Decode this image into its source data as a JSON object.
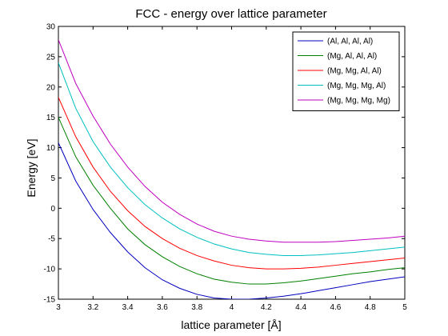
{
  "chart_data": {
    "type": "line",
    "title": "FCC - energy over lattice parameter",
    "xlabel": "lattice parameter [Å]",
    "ylabel": "Energy [eV]",
    "xlim": [
      3,
      5
    ],
    "ylim": [
      -15,
      30
    ],
    "xticks": [
      3,
      3.2,
      3.4,
      3.6,
      3.8,
      4,
      4.2,
      4.4,
      4.6,
      4.8,
      5
    ],
    "xtick_labels": [
      "3",
      "3.2",
      "3.4",
      "3.6",
      "3.8",
      "4",
      "4.2",
      "4.4",
      "4.6",
      "4.8",
      "5"
    ],
    "yticks": [
      -15,
      -10,
      -5,
      0,
      5,
      10,
      15,
      20,
      25,
      30
    ],
    "yticks_labels": [
      "-15",
      "-10",
      "-5",
      "0",
      "5",
      "10",
      "15",
      "20",
      "25",
      "30"
    ],
    "grid": false,
    "legend_position": "top-right",
    "x": [
      3.0,
      3.1,
      3.2,
      3.3,
      3.4,
      3.5,
      3.6,
      3.7,
      3.8,
      3.9,
      4.0,
      4.1,
      4.2,
      4.3,
      4.4,
      4.5,
      4.6,
      4.7,
      4.8,
      4.9,
      5.0
    ],
    "series": [
      {
        "name": "(Al, Al, Al, Al)",
        "color": "#0000bf",
        "values": [
          10.8,
          4.5,
          -0.2,
          -4.0,
          -7.2,
          -9.8,
          -11.8,
          -13.2,
          -14.2,
          -14.8,
          -15.0,
          -15.0,
          -14.8,
          -14.5,
          -14.1,
          -13.6,
          -13.1,
          -12.6,
          -12.1,
          -11.7,
          -11.3
        ]
      },
      {
        "name": "(Mg, Al, Al, Al)",
        "color": "#007f00",
        "values": [
          15.0,
          8.5,
          3.8,
          0.0,
          -3.4,
          -6.0,
          -8.0,
          -9.6,
          -10.8,
          -11.7,
          -12.2,
          -12.5,
          -12.5,
          -12.3,
          -12.0,
          -11.6,
          -11.2,
          -10.8,
          -10.5,
          -10.1,
          -9.8
        ]
      },
      {
        "name": "(Mg, Mg, Al, Al)",
        "color": "#ff0000",
        "values": [
          18.3,
          11.8,
          6.8,
          2.8,
          -0.4,
          -3.0,
          -5.0,
          -6.6,
          -7.8,
          -8.7,
          -9.4,
          -9.8,
          -10.0,
          -10.0,
          -9.9,
          -9.7,
          -9.4,
          -9.1,
          -8.8,
          -8.5,
          -8.2
        ]
      },
      {
        "name": "(Mg, Mg, Mg, Al)",
        "color": "#00bfbf",
        "values": [
          24.0,
          16.5,
          11.0,
          6.8,
          3.4,
          0.6,
          -1.6,
          -3.4,
          -4.8,
          -5.9,
          -6.7,
          -7.3,
          -7.6,
          -7.8,
          -7.8,
          -7.7,
          -7.5,
          -7.3,
          -7.0,
          -6.7,
          -6.4
        ]
      },
      {
        "name": "(Mg, Mg, Mg, Mg)",
        "color": "#bf00bf",
        "values": [
          27.8,
          20.6,
          15.2,
          10.6,
          6.8,
          3.6,
          1.0,
          -1.0,
          -2.6,
          -3.8,
          -4.6,
          -5.1,
          -5.4,
          -5.6,
          -5.6,
          -5.6,
          -5.5,
          -5.3,
          -5.1,
          -4.9,
          -4.6
        ]
      }
    ]
  }
}
